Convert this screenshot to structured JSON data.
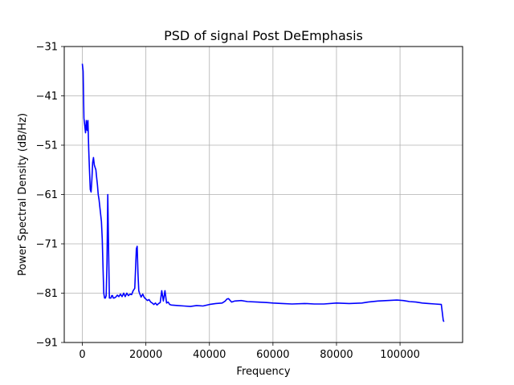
{
  "chart_data": {
    "type": "line",
    "title": "PSD of signal Post DeEmphasis",
    "xlabel": "Frequency",
    "ylabel": "Power Spectral Density (dB/Hz)",
    "xlim": [
      -5700,
      119700
    ],
    "ylim": [
      -91,
      -31
    ],
    "xticks": [
      0,
      20000,
      40000,
      60000,
      80000,
      100000
    ],
    "xtick_labels": [
      "0",
      "20000",
      "40000",
      "60000",
      "80000",
      "100000"
    ],
    "yticks": [
      -91,
      -81,
      -71,
      -61,
      -51,
      -41,
      -31
    ],
    "ytick_labels": [
      "−91",
      "−81",
      "−71",
      "−61",
      "−51",
      "−41",
      "−31"
    ],
    "grid": true,
    "color": "#0000ff",
    "series": [
      {
        "x": [
          0,
          250,
          500,
          750,
          1000,
          1250,
          1500,
          1750,
          2000,
          2250,
          2500,
          2750,
          3000,
          3250,
          3500,
          3750,
          4000,
          4250,
          4500,
          4750,
          5000,
          5250,
          5500,
          5750,
          6000,
          6250,
          6500,
          6750,
          7000,
          7250,
          7500,
          7750,
          8000,
          8250,
          8500,
          8750,
          9000,
          9250,
          9500,
          9750,
          10000,
          10500,
          11000,
          11500,
          12000,
          12500,
          13000,
          13500,
          14000,
          14500,
          15000,
          15500,
          16000,
          16500,
          17000,
          17250,
          17500,
          17750,
          18000,
          18500,
          19000,
          19500,
          20000,
          20500,
          21000,
          21500,
          22000,
          22500,
          23000,
          23500,
          24000,
          24500,
          25000,
          25500,
          26000,
          26500,
          27000,
          27500,
          28000,
          30000,
          32000,
          34000,
          36000,
          38000,
          40000,
          42000,
          44000,
          45000,
          45500,
          46000,
          47000,
          48000,
          50000,
          52000,
          55000,
          58000,
          60000,
          63000,
          66000,
          70000,
          73000,
          76000,
          80000,
          84000,
          88000,
          90000,
          93000,
          96000,
          99000,
          101000,
          103000,
          105000,
          107000,
          109000,
          111000,
          113000,
          113600,
          113800
        ],
        "y": [
          -34.5,
          -36,
          -45.5,
          -47,
          -48.5,
          -46,
          -48,
          -46,
          -52,
          -56,
          -60,
          -60.5,
          -58,
          -54.5,
          -53.5,
          -55,
          -55.5,
          -56,
          -57.5,
          -59,
          -61,
          -62,
          -63.5,
          -65,
          -66.5,
          -70,
          -76,
          -81,
          -82,
          -82,
          -81.5,
          -75,
          -61,
          -72,
          -82,
          -82,
          -82,
          -81.5,
          -81.5,
          -82,
          -82,
          -81.8,
          -81.4,
          -81.7,
          -81.2,
          -81.7,
          -81,
          -81.7,
          -81,
          -81.5,
          -81.2,
          -81.3,
          -80.5,
          -80,
          -72,
          -71.5,
          -77,
          -80.5,
          -81,
          -81.8,
          -81.2,
          -81.9,
          -82.2,
          -82.5,
          -82.3,
          -82.8,
          -83,
          -83.3,
          -83,
          -83.4,
          -83.1,
          -82.9,
          -80.5,
          -82.6,
          -80.5,
          -83,
          -82.8,
          -83.3,
          -83.4,
          -83.5,
          -83.6,
          -83.7,
          -83.5,
          -83.6,
          -83.3,
          -83.1,
          -83,
          -82.6,
          -82.2,
          -82.1,
          -82.8,
          -82.6,
          -82.5,
          -82.7,
          -82.8,
          -82.9,
          -83,
          -83.1,
          -83.2,
          -83.1,
          -83.2,
          -83.2,
          -83,
          -83.1,
          -83,
          -82.8,
          -82.6,
          -82.5,
          -82.4,
          -82.5,
          -82.7,
          -82.8,
          -83,
          -83.1,
          -83.2,
          -83.3,
          -86.5,
          -86.8
        ]
      }
    ]
  }
}
